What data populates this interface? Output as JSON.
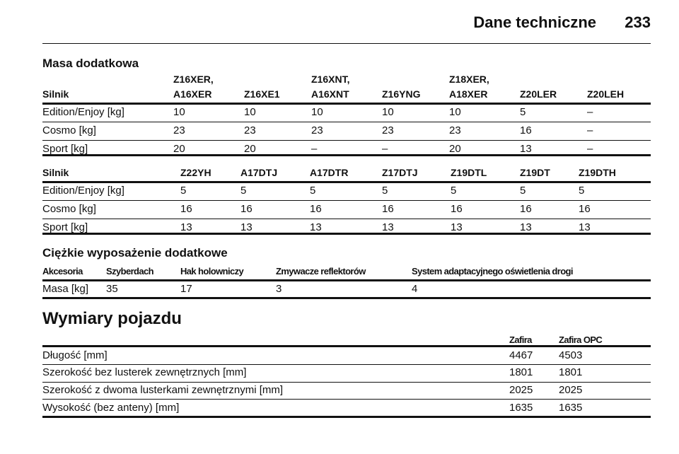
{
  "header": {
    "section": "Dane techniczne",
    "page": "233"
  },
  "masa": {
    "title": "Masa dodatkowa",
    "table1": {
      "header": [
        [
          "Silnik"
        ],
        [
          "Z16XER,",
          "A16XER"
        ],
        [
          "Z16XE1"
        ],
        [
          "Z16XNT,",
          "A16XNT"
        ],
        [
          "Z16YNG"
        ],
        [
          "Z18XER,",
          "A18XER"
        ],
        [
          "Z20LER"
        ],
        [
          "Z20LEH"
        ]
      ],
      "rows": [
        [
          "Edition/Enjoy [kg]",
          "10",
          "10",
          "10",
          "10",
          "10",
          "5",
          "–"
        ],
        [
          "Cosmo [kg]",
          "23",
          "23",
          "23",
          "23",
          "23",
          "16",
          "–"
        ],
        [
          "Sport [kg]",
          "20",
          "20",
          "–",
          "–",
          "20",
          "13",
          "–"
        ]
      ]
    },
    "table2": {
      "header": [
        "Silnik",
        "Z22YH",
        "A17DTJ",
        "A17DTR",
        "Z17DTJ",
        "Z19DTL",
        "Z19DT",
        "Z19DTH"
      ],
      "rows": [
        [
          "Edition/Enjoy [kg]",
          "5",
          "5",
          "5",
          "5",
          "5",
          "5",
          "5"
        ],
        [
          "Cosmo [kg]",
          "16",
          "16",
          "16",
          "16",
          "16",
          "16",
          "16"
        ],
        [
          "Sport [kg]",
          "13",
          "13",
          "13",
          "13",
          "13",
          "13",
          "13"
        ]
      ]
    }
  },
  "heavy": {
    "title": "Ciężkie wyposażenie dodatkowe",
    "table": {
      "header": [
        "Akcesoria",
        "Szyberdach",
        "Hak holowniczy",
        "Zmywacze reflektorów",
        "System adaptacyjnego oświetlenia drogi"
      ],
      "rows": [
        [
          "Masa [kg]",
          "35",
          "17",
          "3",
          "4"
        ]
      ]
    }
  },
  "dims": {
    "title": "Wymiary pojazdu",
    "table": {
      "header": [
        "Zafira",
        "Zafira OPC"
      ],
      "rows": [
        [
          "Długość [mm]",
          "4467",
          "4503"
        ],
        [
          "Szerokość bez lusterek zewnętrznych [mm]",
          "1801",
          "1801"
        ],
        [
          "Szerokość z dwoma lusterkami zewnętrznymi [mm]",
          "2025",
          "2025"
        ],
        [
          "Wysokość (bez anteny) [mm]",
          "1635",
          "1635"
        ]
      ]
    }
  }
}
